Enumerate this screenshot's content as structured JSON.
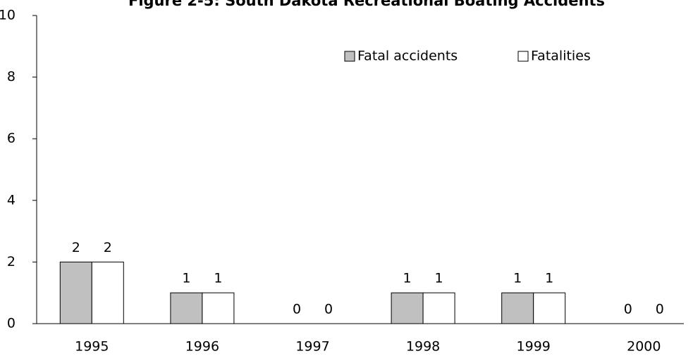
{
  "chart_data": {
    "type": "bar",
    "title": "Figure 2-5: South Dakota Recreational Boating Accidents",
    "categories": [
      "1995",
      "1996",
      "1997",
      "1998",
      "1999",
      "2000"
    ],
    "series": [
      {
        "name": "Fatal accidents",
        "color": "#c0c0c0",
        "values": [
          2,
          1,
          0,
          1,
          1,
          0
        ]
      },
      {
        "name": "Fatalities",
        "color": "#ffffff",
        "values": [
          2,
          1,
          0,
          1,
          1,
          0
        ]
      }
    ],
    "ylim": [
      0,
      10
    ],
    "yticks": [
      0,
      2,
      4,
      6,
      8,
      10
    ],
    "grid": false,
    "legend": "upper right"
  }
}
